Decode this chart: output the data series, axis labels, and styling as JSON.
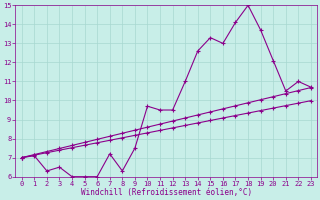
{
  "line1_x": [
    0,
    1,
    2,
    3,
    4,
    5,
    6,
    7,
    8,
    9,
    10,
    11,
    12,
    13,
    14,
    15,
    16,
    17,
    18,
    19,
    20,
    21,
    22,
    23
  ],
  "line1_y": [
    7.0,
    7.1,
    6.3,
    6.5,
    6.0,
    6.0,
    6.0,
    7.2,
    6.3,
    7.5,
    9.7,
    9.5,
    9.5,
    11.0,
    12.6,
    13.3,
    13.0,
    14.1,
    15.0,
    13.7,
    12.1,
    10.5,
    11.0,
    10.7
  ],
  "line2_x": [
    0,
    1,
    2,
    3,
    4,
    5,
    6,
    7,
    8,
    9,
    10,
    11,
    12,
    13,
    14,
    15,
    16,
    17,
    18,
    19,
    20,
    21,
    22,
    23
  ],
  "line2_y": [
    7.0,
    7.16,
    7.32,
    7.48,
    7.64,
    7.8,
    7.96,
    8.12,
    8.28,
    8.44,
    8.6,
    8.76,
    8.92,
    9.08,
    9.24,
    9.4,
    9.56,
    9.72,
    9.88,
    10.04,
    10.2,
    10.36,
    10.52,
    10.68
  ],
  "line3_x": [
    0,
    1,
    2,
    3,
    4,
    5,
    6,
    7,
    8,
    9,
    10,
    11,
    12,
    13,
    14,
    15,
    16,
    17,
    18,
    19,
    20,
    21,
    22,
    23
  ],
  "line3_y": [
    7.0,
    7.13,
    7.26,
    7.39,
    7.52,
    7.65,
    7.78,
    7.91,
    8.04,
    8.17,
    8.3,
    8.43,
    8.56,
    8.69,
    8.82,
    8.95,
    9.08,
    9.21,
    9.34,
    9.47,
    9.6,
    9.73,
    9.86,
    9.99
  ],
  "line_color": "#8B008B",
  "bg_color": "#C8EEE8",
  "grid_color": "#A8D8D0",
  "xlabel": "Windchill (Refroidissement éolien,°C)",
  "xlim": [
    -0.5,
    23.5
  ],
  "ylim": [
    6,
    15
  ],
  "xticks": [
    0,
    1,
    2,
    3,
    4,
    5,
    6,
    7,
    8,
    9,
    10,
    11,
    12,
    13,
    14,
    15,
    16,
    17,
    18,
    19,
    20,
    21,
    22,
    23
  ],
  "yticks": [
    6,
    7,
    8,
    9,
    10,
    11,
    12,
    13,
    14,
    15
  ],
  "marker": "+",
  "markersize": 3,
  "linewidth": 0.8,
  "tick_fontsize": 5.0,
  "xlabel_fontsize": 5.5
}
